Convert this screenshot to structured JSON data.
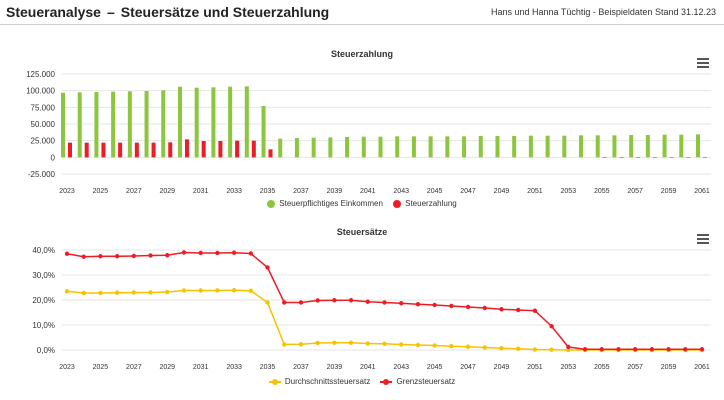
{
  "header": {
    "title_left": "Steueranalyse",
    "title_sep": "–",
    "title_right": "Steuersätze und Steuerzahlung",
    "subtitle": "Hans und Hanna Tüchtig - Beispieldaten Stand 31.12.23"
  },
  "colors": {
    "green": "#8cc63f",
    "red": "#ee1c25",
    "yellow": "#f5c300",
    "grid": "#e6e6e6",
    "axis_text": "#333333"
  },
  "chart_data": [
    {
      "type": "bar",
      "title": "Steuerzahlung",
      "categories": [
        "2023",
        "2024",
        "2025",
        "2026",
        "2027",
        "2028",
        "2029",
        "2030",
        "2031",
        "2032",
        "2033",
        "2034",
        "2035",
        "2036",
        "2037",
        "2038",
        "2039",
        "2040",
        "2041",
        "2042",
        "2043",
        "2044",
        "2045",
        "2046",
        "2047",
        "2048",
        "2049",
        "2050",
        "2051",
        "2052",
        "2053",
        "2054",
        "2055",
        "2056",
        "2057",
        "2058",
        "2059",
        "2060",
        "2061"
      ],
      "x_tick_labels": [
        "2023",
        "2025",
        "2027",
        "2029",
        "2031",
        "2033",
        "2035",
        "2037",
        "2039",
        "2041",
        "2043",
        "2045",
        "2047",
        "2049",
        "2051",
        "2053",
        "2055",
        "2057",
        "2059",
        "2061"
      ],
      "ylim": [
        -25000,
        125000
      ],
      "y_ticks": [
        -25000,
        0,
        25000,
        50000,
        75000,
        100000,
        125000
      ],
      "y_tick_labels": [
        "-25.000",
        "0",
        "25.000",
        "50.000",
        "75.000",
        "100.000",
        "125.000"
      ],
      "legend_position": "bottom-center",
      "series": [
        {
          "name": "Steuerpflichtiges Einkommen",
          "color": "#8cc63f",
          "values": [
            97000,
            97500,
            98000,
            98500,
            99000,
            99500,
            100500,
            106000,
            104500,
            105000,
            106000,
            106500,
            77000,
            28000,
            29000,
            29500,
            30000,
            30500,
            31000,
            31000,
            31500,
            31500,
            31500,
            31500,
            31500,
            32000,
            32000,
            32000,
            32500,
            32500,
            32500,
            33000,
            33000,
            33000,
            33500,
            33500,
            34000,
            34000,
            34500
          ]
        },
        {
          "name": "Steuerzahlung",
          "color": "#ee1c25",
          "values": [
            22000,
            22000,
            22000,
            22000,
            22000,
            22000,
            22500,
            27000,
            24500,
            24500,
            25000,
            25000,
            12000,
            0,
            0,
            0,
            0,
            0,
            0,
            0,
            0,
            0,
            0,
            0,
            0,
            0,
            0,
            0,
            0,
            0,
            0,
            0,
            -700,
            -700,
            -700,
            -700,
            -700,
            -700,
            -700
          ]
        }
      ]
    },
    {
      "type": "line",
      "title": "Steuersätze",
      "categories": [
        "2023",
        "2024",
        "2025",
        "2026",
        "2027",
        "2028",
        "2029",
        "2030",
        "2031",
        "2032",
        "2033",
        "2034",
        "2035",
        "2036",
        "2037",
        "2038",
        "2039",
        "2040",
        "2041",
        "2042",
        "2043",
        "2044",
        "2045",
        "2046",
        "2047",
        "2048",
        "2049",
        "2050",
        "2051",
        "2052",
        "2053",
        "2054",
        "2055",
        "2056",
        "2057",
        "2058",
        "2059",
        "2060",
        "2061"
      ],
      "x_tick_labels": [
        "2023",
        "2025",
        "2027",
        "2029",
        "2031",
        "2033",
        "2035",
        "2037",
        "2039",
        "2041",
        "2043",
        "2045",
        "2047",
        "2049",
        "2051",
        "2053",
        "2055",
        "2057",
        "2059",
        "2061"
      ],
      "ylim": [
        0,
        40
      ],
      "y_ticks": [
        0,
        10,
        20,
        30,
        40
      ],
      "y_tick_labels": [
        "0,0%",
        "10,0%",
        "20,0%",
        "30,0%",
        "40,0%"
      ],
      "legend_position": "bottom-center",
      "series": [
        {
          "name": "Durchschnittssteuersatz",
          "color": "#f5c300",
          "values": [
            23.5,
            22.8,
            22.8,
            22.9,
            23.0,
            23.0,
            23.2,
            23.8,
            23.8,
            23.8,
            23.9,
            23.7,
            19.0,
            2.2,
            2.3,
            2.8,
            2.9,
            2.9,
            2.6,
            2.5,
            2.2,
            2.0,
            1.8,
            1.5,
            1.3,
            1.0,
            0.7,
            0.5,
            0.2,
            0.1,
            0.0,
            0.0,
            0.0,
            0.0,
            0.0,
            0.0,
            0.0,
            0.0,
            0.0
          ]
        },
        {
          "name": "Grenzsteuersatz",
          "color": "#ee1c25",
          "values": [
            38.5,
            37.3,
            37.5,
            37.5,
            37.6,
            37.8,
            37.9,
            39.0,
            38.8,
            38.8,
            38.9,
            38.6,
            33.0,
            19.0,
            19.0,
            19.8,
            19.9,
            19.9,
            19.3,
            19.0,
            18.7,
            18.3,
            18.0,
            17.6,
            17.2,
            16.8,
            16.3,
            16.0,
            15.7,
            9.5,
            1.2,
            0.3,
            0.3,
            0.3,
            0.3,
            0.3,
            0.3,
            0.3,
            0.3
          ]
        }
      ]
    }
  ]
}
